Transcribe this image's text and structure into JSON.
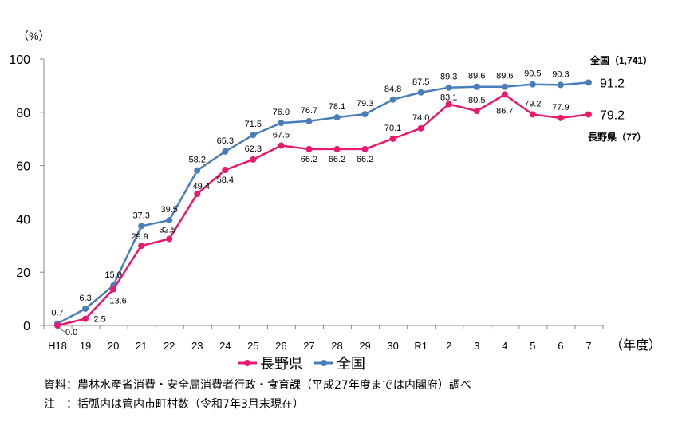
{
  "chart_data": {
    "type": "line",
    "ylabel": "（%）",
    "xlabel": "（年度）",
    "ylim": [
      0,
      100
    ],
    "yticks": [
      0,
      20,
      40,
      60,
      80,
      100
    ],
    "grid": false,
    "categories": [
      "H18",
      "19",
      "20",
      "21",
      "22",
      "23",
      "24",
      "25",
      "26",
      "27",
      "28",
      "29",
      "30",
      "R1",
      "2",
      "3",
      "4",
      "5",
      "6",
      "7"
    ],
    "series": [
      {
        "name": "長野県",
        "color": "#e8196e",
        "end_label": "長野県（77）",
        "values": [
          0.0,
          2.5,
          13.6,
          29.9,
          32.5,
          49.4,
          58.4,
          62.3,
          67.5,
          66.2,
          66.2,
          66.2,
          70.1,
          74.0,
          83.1,
          80.5,
          86.7,
          79.2,
          77.9,
          79.2
        ]
      },
      {
        "name": "全国",
        "color": "#4a7ebb",
        "end_label": "全国（1,741）",
        "values": [
          0.7,
          6.3,
          15.0,
          37.3,
          39.5,
          58.2,
          65.3,
          71.5,
          76.0,
          76.7,
          78.1,
          79.3,
          84.8,
          87.5,
          89.3,
          89.6,
          89.6,
          90.5,
          90.3,
          91.2
        ]
      }
    ],
    "legend": "bottom"
  },
  "notes": {
    "source": "資料：農林水産省消費・安全局消費者行政・食育課（平成27年度までは内閣府）調べ",
    "note": "注　：括弧内は管内市町村数（令和7年3月末現在）"
  }
}
